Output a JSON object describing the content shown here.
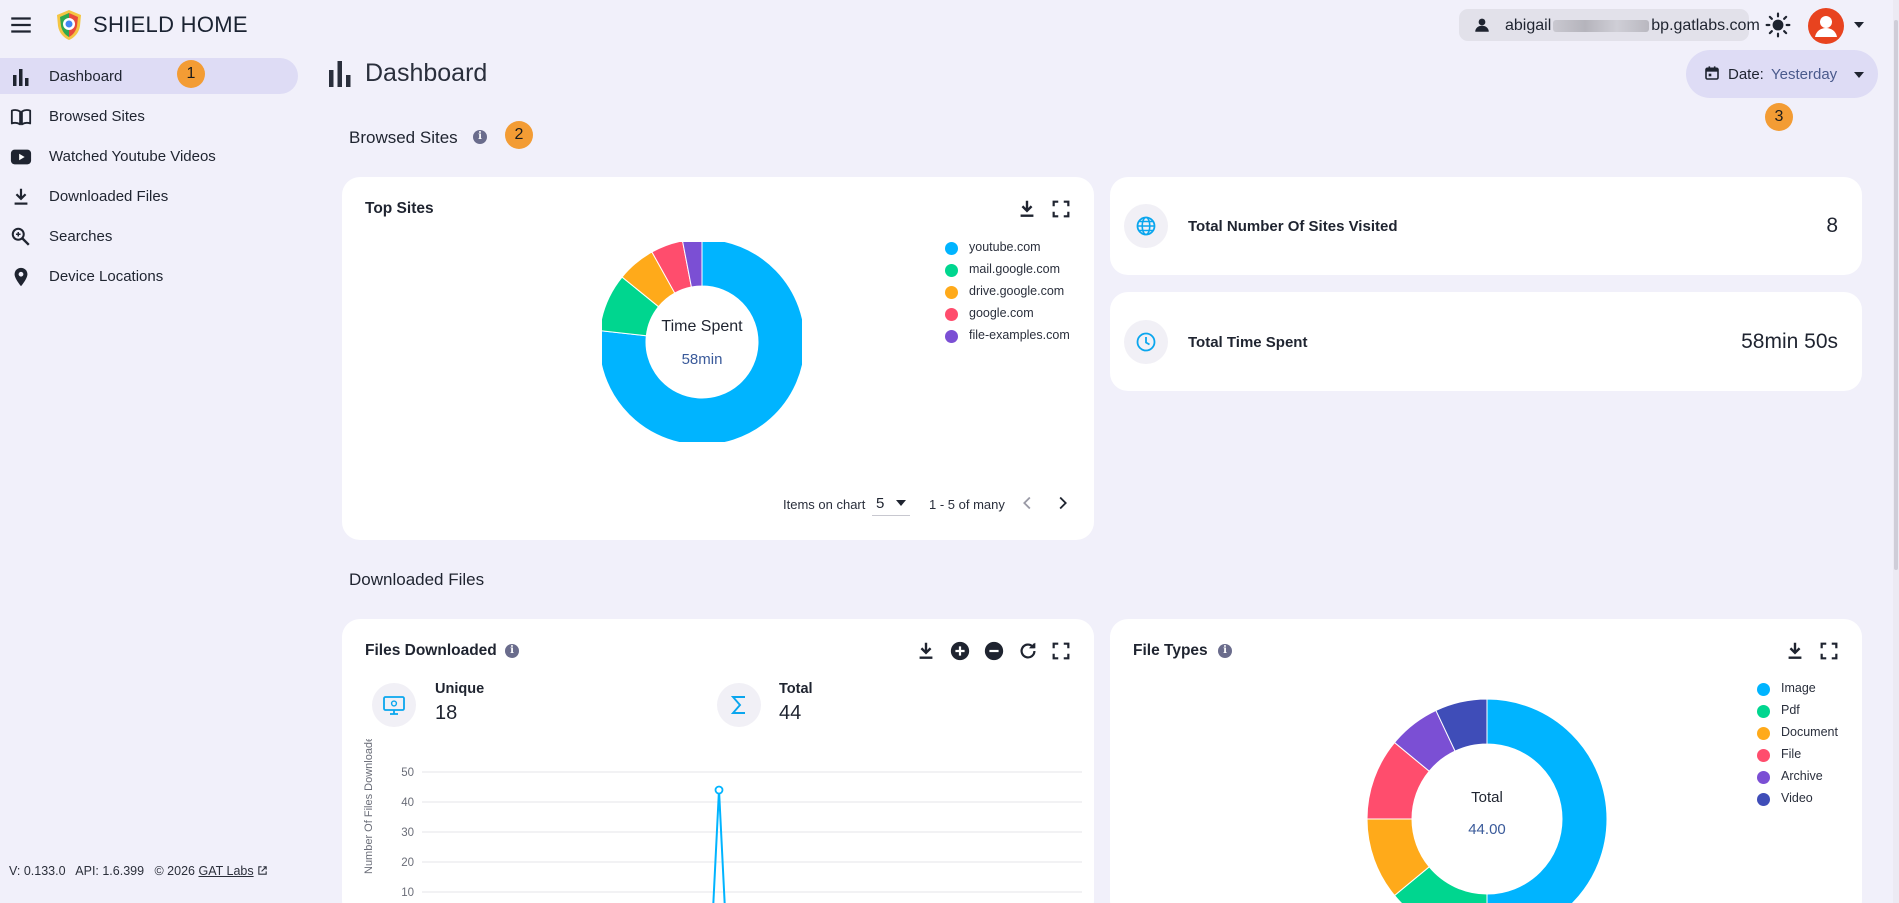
{
  "app": {
    "title": "SHIELD HOME",
    "user_email_prefix": "abigail",
    "user_email_suffix": "bp.gatlabs.com"
  },
  "sidebar": {
    "items": [
      {
        "label": "Dashboard",
        "icon": "bar-chart-icon"
      },
      {
        "label": "Browsed Sites",
        "icon": "book-open-icon"
      },
      {
        "label": "Watched Youtube Videos",
        "icon": "youtube-icon"
      },
      {
        "label": "Downloaded Files",
        "icon": "download-icon"
      },
      {
        "label": "Searches",
        "icon": "search-icon"
      },
      {
        "label": "Device Locations",
        "icon": "location-pin-icon"
      }
    ],
    "footer": {
      "version": "V: 0.133.0",
      "api": "API: 1.6.399",
      "copyright": "© 2026",
      "link": "GAT Labs"
    }
  },
  "badges": [
    "1",
    "2",
    "3"
  ],
  "page": {
    "title": "Dashboard",
    "date_filter": {
      "label": "Date:",
      "value": "Yesterday"
    }
  },
  "browsed_sites": {
    "section_title": "Browsed Sites",
    "top_sites": {
      "title": "Top Sites",
      "center_label": "Time Spent",
      "center_value": "58min",
      "items_on_chart_label": "Items on chart",
      "items_on_chart_value": "5",
      "range_text": "1 - 5 of many"
    },
    "stats": [
      {
        "label": "Total Number Of Sites Visited",
        "value": "8",
        "icon": "globe-icon"
      },
      {
        "label": "Total Time Spent",
        "value": "58min 50s",
        "icon": "clock-icon"
      }
    ]
  },
  "downloaded_files": {
    "section_title": "Downloaded Files",
    "files_downloaded": {
      "title": "Files Downloaded",
      "unique_label": "Unique",
      "unique_value": "18",
      "total_label": "Total",
      "total_value": "44",
      "ylabel": "Number Of Files Downloaded"
    },
    "file_types": {
      "title": "File Types",
      "center_label": "Total",
      "center_value": "44.00"
    }
  },
  "colors": {
    "accent": "#00b4ff",
    "green": "#00d68f",
    "orange": "#ffaa1a",
    "red": "#ff4d6d",
    "purple": "#7b4fd4",
    "indigo": "#3f4db8",
    "badge": "#f39c34"
  },
  "chart_data": [
    {
      "type": "pie",
      "title": "Top Sites",
      "categories": [
        "youtube.com",
        "mail.google.com",
        "drive.google.com",
        "google.com",
        "file-examples.com"
      ],
      "values": [
        76,
        9,
        6,
        5,
        3
      ],
      "colors": [
        "#00b4ff",
        "#00d68f",
        "#ffaa1a",
        "#ff4d6d",
        "#7b4fd4"
      ]
    },
    {
      "type": "line",
      "title": "Files Downloaded",
      "ylabel": "Number Of Files Downloaded",
      "ylim": [
        0,
        50
      ],
      "yticks": [
        10,
        20,
        30,
        40,
        50
      ],
      "series": [
        {
          "x": [
            0,
            10,
            20,
            30,
            35,
            40,
            44,
            45,
            46,
            50,
            55,
            60,
            70,
            80,
            100
          ],
          "values": [
            0,
            0,
            0,
            0,
            0,
            0,
            0,
            44,
            0,
            0,
            0,
            0,
            0,
            0,
            0
          ]
        }
      ]
    },
    {
      "type": "pie",
      "title": "File Types",
      "categories": [
        "Image",
        "Pdf",
        "Document",
        "File",
        "Archive",
        "Video"
      ],
      "values": [
        50,
        14,
        11,
        11,
        7,
        7
      ],
      "colors": [
        "#00b4ff",
        "#00d68f",
        "#ffaa1a",
        "#ff4d6d",
        "#7b4fd4",
        "#3f4db8"
      ]
    }
  ]
}
